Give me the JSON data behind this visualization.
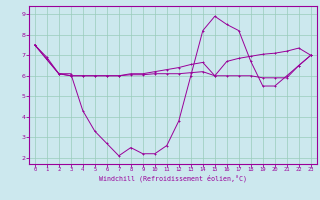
{
  "title": "",
  "xlabel": "Windchill (Refroidissement éolien,°C)",
  "bg_color": "#cce8ee",
  "grid_color": "#99ccbb",
  "line_color": "#990099",
  "xlim": [
    -0.5,
    23.5
  ],
  "ylim": [
    1.7,
    9.4
  ],
  "xticks": [
    0,
    1,
    2,
    3,
    4,
    5,
    6,
    7,
    8,
    9,
    10,
    11,
    12,
    13,
    14,
    15,
    16,
    17,
    18,
    19,
    20,
    21,
    22,
    23
  ],
  "yticks": [
    2,
    3,
    4,
    5,
    6,
    7,
    8,
    9
  ],
  "series1_x": [
    0,
    1,
    2,
    3,
    4,
    5,
    6,
    7,
    8,
    9,
    10,
    11,
    12,
    13,
    14,
    15,
    16,
    17,
    18,
    19,
    20,
    21,
    22,
    23
  ],
  "series1_y": [
    7.5,
    6.9,
    6.1,
    6.1,
    4.3,
    3.3,
    2.7,
    2.1,
    2.5,
    2.2,
    2.2,
    2.6,
    3.8,
    6.0,
    8.2,
    8.9,
    8.5,
    8.2,
    6.7,
    5.5,
    5.5,
    6.0,
    6.5,
    7.0
  ],
  "series2_x": [
    0,
    1,
    2,
    3,
    4,
    5,
    6,
    7,
    8,
    9,
    10,
    11,
    12,
    13,
    14,
    15,
    16,
    17,
    18,
    19,
    20,
    21,
    22,
    23
  ],
  "series2_y": [
    7.5,
    6.8,
    6.1,
    6.0,
    6.0,
    6.0,
    6.0,
    6.0,
    6.05,
    6.05,
    6.1,
    6.1,
    6.1,
    6.15,
    6.2,
    6.0,
    6.0,
    6.0,
    6.0,
    5.9,
    5.9,
    5.9,
    6.5,
    7.0
  ],
  "series3_x": [
    0,
    1,
    2,
    3,
    4,
    5,
    6,
    7,
    8,
    9,
    10,
    11,
    12,
    13,
    14,
    15,
    16,
    17,
    18,
    19,
    20,
    21,
    22,
    23
  ],
  "series3_y": [
    7.5,
    6.8,
    6.1,
    6.0,
    6.0,
    6.0,
    6.0,
    6.0,
    6.1,
    6.1,
    6.2,
    6.3,
    6.4,
    6.55,
    6.65,
    6.0,
    6.7,
    6.85,
    6.95,
    7.05,
    7.1,
    7.2,
    7.35,
    7.0
  ]
}
